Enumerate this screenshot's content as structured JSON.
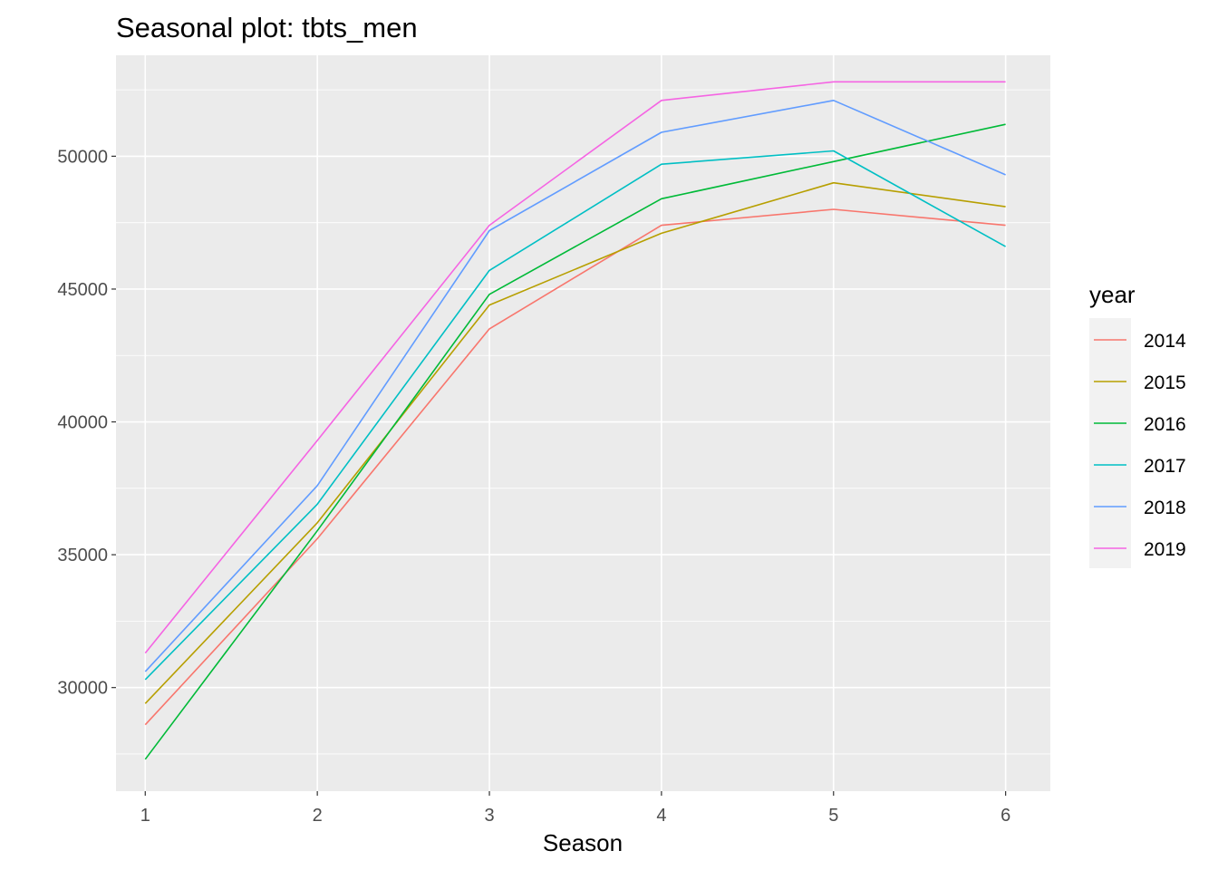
{
  "chart_data": {
    "type": "line",
    "title": "Seasonal plot: tbts_men",
    "xlabel": "Season",
    "ylabel": "",
    "x": [
      1,
      2,
      3,
      4,
      5,
      6
    ],
    "x_tick_labels": [
      "1",
      "2",
      "3",
      "4",
      "5",
      "6"
    ],
    "y_ticks": [
      30000,
      35000,
      40000,
      45000,
      50000
    ],
    "y_tick_labels": [
      "30000",
      "35000",
      "40000",
      "45000",
      "50000"
    ],
    "xlim": [
      0.83,
      6.26
    ],
    "ylim": [
      26100,
      53800
    ],
    "grid": true,
    "legend": {
      "title": "year",
      "position": "right"
    },
    "series": [
      {
        "name": "2014",
        "color": "#F8766D",
        "values": [
          28600,
          35600,
          43500,
          47400,
          48000,
          47400
        ]
      },
      {
        "name": "2015",
        "color": "#B79F00",
        "values": [
          29400,
          36200,
          44400,
          47100,
          49000,
          48100
        ]
      },
      {
        "name": "2016",
        "color": "#00BA38",
        "values": [
          27300,
          35900,
          44800,
          48400,
          49800,
          51200
        ]
      },
      {
        "name": "2017",
        "color": "#00BFC4",
        "values": [
          30300,
          36900,
          45700,
          49700,
          50200,
          46600
        ]
      },
      {
        "name": "2018",
        "color": "#619CFF",
        "values": [
          30600,
          37600,
          47200,
          50900,
          52100,
          49300
        ]
      },
      {
        "name": "2019",
        "color": "#F564E3",
        "values": [
          31300,
          39300,
          47400,
          52100,
          52800,
          52800
        ]
      }
    ]
  }
}
